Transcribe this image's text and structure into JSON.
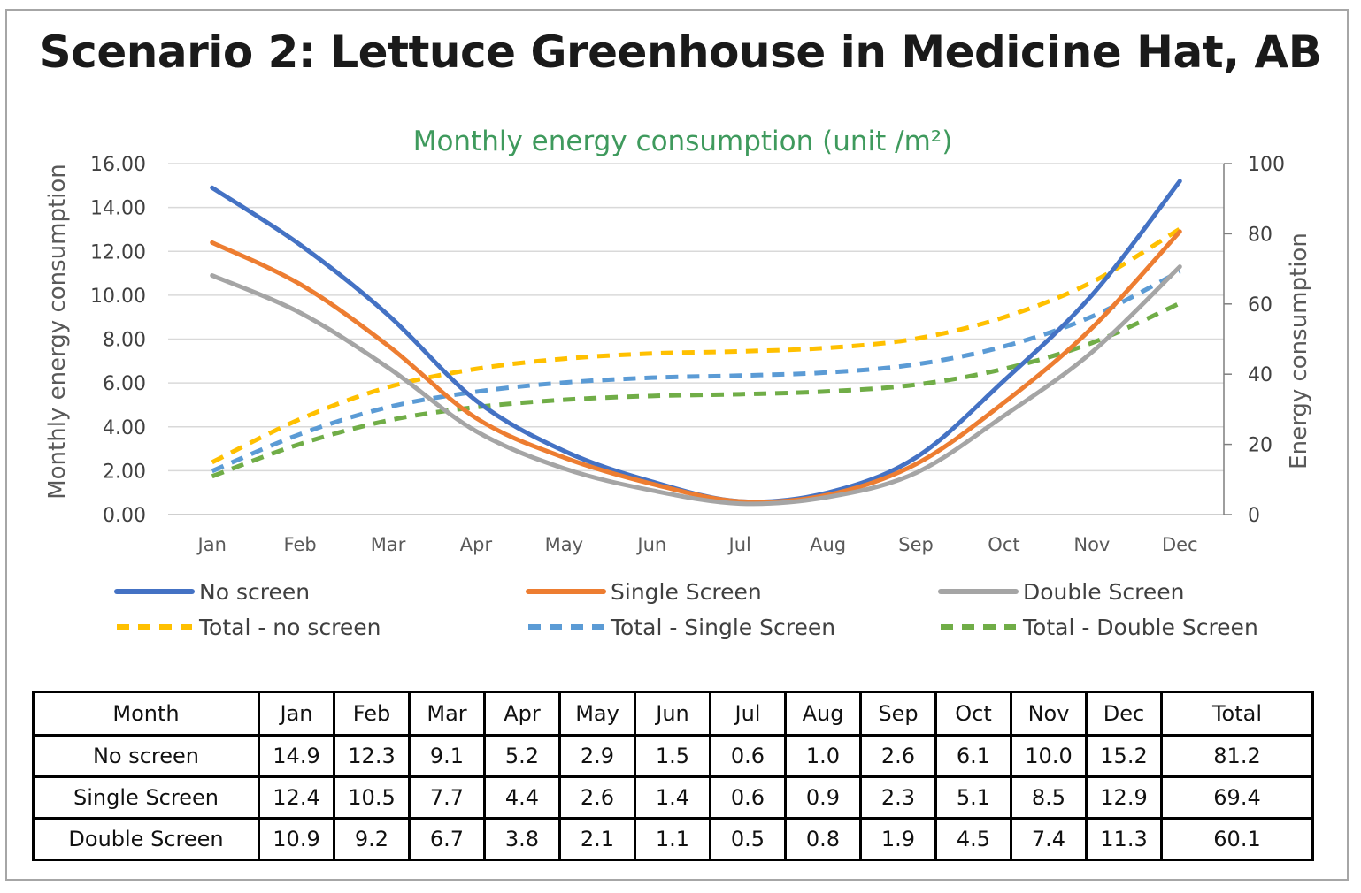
{
  "title": "Scenario 2: Lettuce Greenhouse in Medicine Hat, AB",
  "chart_data": {
    "type": "line",
    "title": "Monthly energy consumption (unit /m²)",
    "ylabel": "Monthly energy consumption",
    "y2label": "Energy consumption",
    "categories": [
      "Jan",
      "Feb",
      "Mar",
      "Apr",
      "May",
      "Jun",
      "Jul",
      "Aug",
      "Sep",
      "Oct",
      "Nov",
      "Dec"
    ],
    "ylim": [
      0,
      16
    ],
    "y2lim": [
      0,
      100
    ],
    "yticks": [
      "0.00",
      "2.00",
      "4.00",
      "6.00",
      "8.00",
      "10.00",
      "12.00",
      "14.00",
      "16.00"
    ],
    "y2ticks": [
      "0",
      "20",
      "40",
      "60",
      "80",
      "100"
    ],
    "grid": true,
    "legend_position": "bottom",
    "series": [
      {
        "name": "No screen",
        "axis": "left",
        "style": "solid",
        "color": "#4472c4",
        "values": [
          14.9,
          12.3,
          9.1,
          5.2,
          2.9,
          1.5,
          0.6,
          1.0,
          2.6,
          6.1,
          10.0,
          15.2
        ]
      },
      {
        "name": "Single Screen",
        "axis": "left",
        "style": "solid",
        "color": "#ed7d31",
        "values": [
          12.4,
          10.5,
          7.7,
          4.4,
          2.6,
          1.4,
          0.6,
          0.9,
          2.3,
          5.1,
          8.5,
          12.9
        ]
      },
      {
        "name": "Double Screen",
        "axis": "left",
        "style": "solid",
        "color": "#a5a5a5",
        "values": [
          10.9,
          9.2,
          6.7,
          3.8,
          2.1,
          1.1,
          0.5,
          0.8,
          1.9,
          4.5,
          7.4,
          11.3
        ]
      },
      {
        "name": "Total - no screen",
        "axis": "right",
        "style": "dashed",
        "color": "#ffc000",
        "values": [
          14.9,
          27.2,
          36.3,
          41.5,
          44.4,
          45.9,
          46.5,
          47.5,
          50.1,
          56.2,
          66.2,
          81.4
        ]
      },
      {
        "name": "Total - Single Screen",
        "axis": "right",
        "style": "dashed",
        "color": "#5b9bd5",
        "values": [
          12.4,
          22.9,
          30.6,
          35.0,
          37.6,
          39.0,
          39.6,
          40.5,
          42.8,
          47.9,
          56.4,
          69.3
        ]
      },
      {
        "name": "Total - Double Screen",
        "axis": "right",
        "style": "dashed",
        "color": "#70ad47",
        "values": [
          10.9,
          20.1,
          26.8,
          30.6,
          32.7,
          33.8,
          34.3,
          35.1,
          37.0,
          41.5,
          48.9,
          60.2
        ]
      }
    ]
  },
  "table": {
    "header": [
      "Month",
      "Jan",
      "Feb",
      "Mar",
      "Apr",
      "May",
      "Jun",
      "Jul",
      "Aug",
      "Sep",
      "Oct",
      "Nov",
      "Dec",
      "Total"
    ],
    "rows": [
      [
        "No screen",
        "14.9",
        "12.3",
        "9.1",
        "5.2",
        "2.9",
        "1.5",
        "0.6",
        "1.0",
        "2.6",
        "6.1",
        "10.0",
        "15.2",
        "81.2"
      ],
      [
        "Single Screen",
        "12.4",
        "10.5",
        "7.7",
        "4.4",
        "2.6",
        "1.4",
        "0.6",
        "0.9",
        "2.3",
        "5.1",
        "8.5",
        "12.9",
        "69.4"
      ],
      [
        "Double Screen",
        "10.9",
        "9.2",
        "6.7",
        "3.8",
        "2.1",
        "1.1",
        "0.5",
        "0.8",
        "1.9",
        "4.5",
        "7.4",
        "11.3",
        "60.1"
      ]
    ]
  }
}
